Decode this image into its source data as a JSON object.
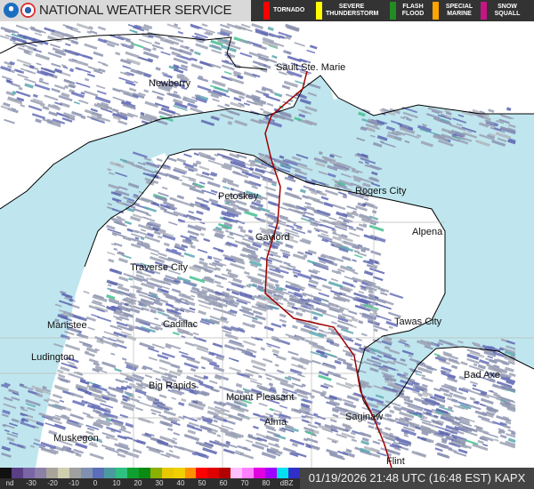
{
  "header": {
    "title": "NATIONAL WEATHER SERVICE",
    "logos": [
      "noaa-logo",
      "nws-logo"
    ]
  },
  "warnings": [
    {
      "label": "TORNADO",
      "color": "#ff0000"
    },
    {
      "label": "SEVERE THUNDERSTORM",
      "color": "#ffff00"
    },
    {
      "label": "FLASH FLOOD",
      "color": "#228b22"
    },
    {
      "label": "SPECIAL MARINE",
      "color": "#ffa500"
    },
    {
      "label": "SNOW SQUALL",
      "color": "#c71585"
    }
  ],
  "cities": [
    {
      "name": "Sault Ste. Marie"
    },
    {
      "name": "Newberry"
    },
    {
      "name": "Petoskey"
    },
    {
      "name": "Rogers City"
    },
    {
      "name": "Gaylord"
    },
    {
      "name": "Alpena"
    },
    {
      "name": "Traverse City"
    },
    {
      "name": "Tawas City"
    },
    {
      "name": "Manistee"
    },
    {
      "name": "Cadillac"
    },
    {
      "name": "Ludington"
    },
    {
      "name": "Bad Axe"
    },
    {
      "name": "Big Rapids"
    },
    {
      "name": "Mount Pleasant"
    },
    {
      "name": "Alma"
    },
    {
      "name": "Saginaw"
    },
    {
      "name": "Muskegon"
    },
    {
      "name": "Flint"
    }
  ],
  "legend": {
    "ticks": [
      "nd",
      "-30",
      "-20",
      "-10",
      "0",
      "10",
      "20",
      "30",
      "40",
      "50",
      "60",
      "70",
      "80",
      "dBZ"
    ],
    "colors": [
      "#111111",
      "#5a3f86",
      "#7a66a6",
      "#8c7fa8",
      "#a9a49a",
      "#cfcfaf",
      "#a0a0a0",
      "#8090b0",
      "#5a6fb8",
      "#4a9aa0",
      "#30c080",
      "#10a030",
      "#0a8a10",
      "#8ab000",
      "#e8c800",
      "#f0d000",
      "#ff9000",
      "#ff0000",
      "#e00000",
      "#b00000",
      "#ffc0ff",
      "#ff80ff",
      "#e000e0",
      "#a000ff",
      "#00e0f0",
      "#3030c8"
    ]
  },
  "timestamp": "01/19/2026 21:48 UTC (16:48 EST)  KAPX",
  "colors": {
    "water": "#bfe6ee",
    "land": "#ffffff",
    "highway": "#a00000"
  }
}
